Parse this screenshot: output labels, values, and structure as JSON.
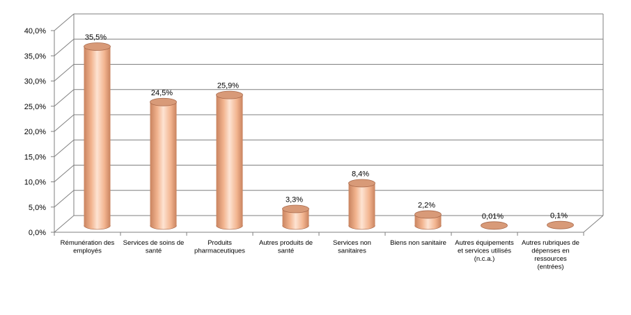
{
  "chart_data": {
    "type": "bar",
    "title": "",
    "xlabel": "",
    "ylabel": "",
    "categories": [
      [
        "Rémunération des",
        "employés"
      ],
      [
        "Services de soins de",
        "santé"
      ],
      [
        "Produits",
        "pharmaceutiques"
      ],
      [
        "Autres produits de",
        "santé"
      ],
      [
        "Services non",
        "sanitaires"
      ],
      [
        "Biens non sanitaire"
      ],
      [
        "Autres équipements",
        "et services utilisés",
        "(n.c.a.)"
      ],
      [
        "Autres rubriques de",
        "dépenses en",
        "ressources",
        "(entrées)"
      ]
    ],
    "values": [
      35.5,
      24.5,
      25.9,
      3.3,
      8.4,
      2.2,
      0.01,
      0.1
    ],
    "data_labels": [
      "35,5%",
      "24,5%",
      "25,9%",
      "3,3%",
      "8,4%",
      "2,2%",
      "0,01%",
      "0,1%"
    ],
    "ylim": [
      0,
      40
    ],
    "yticks": [
      0,
      5,
      10,
      15,
      20,
      25,
      30,
      35,
      40
    ],
    "ytick_labels": [
      "0,0%",
      "5,0%",
      "10,0%",
      "15,0%",
      "20,0%",
      "25,0%",
      "30,0%",
      "35,0%",
      "40,0%"
    ],
    "grid": true,
    "legend": "none",
    "bar_shape": "3d-cylinder",
    "colors": {
      "bar_fill": "#f2b48f",
      "bar_light": "#fde3d2",
      "bar_dark": "#c9835f",
      "bar_top": "#d89a78",
      "bar_edge": "#a8684a",
      "grid": "#7f7f7f"
    }
  }
}
